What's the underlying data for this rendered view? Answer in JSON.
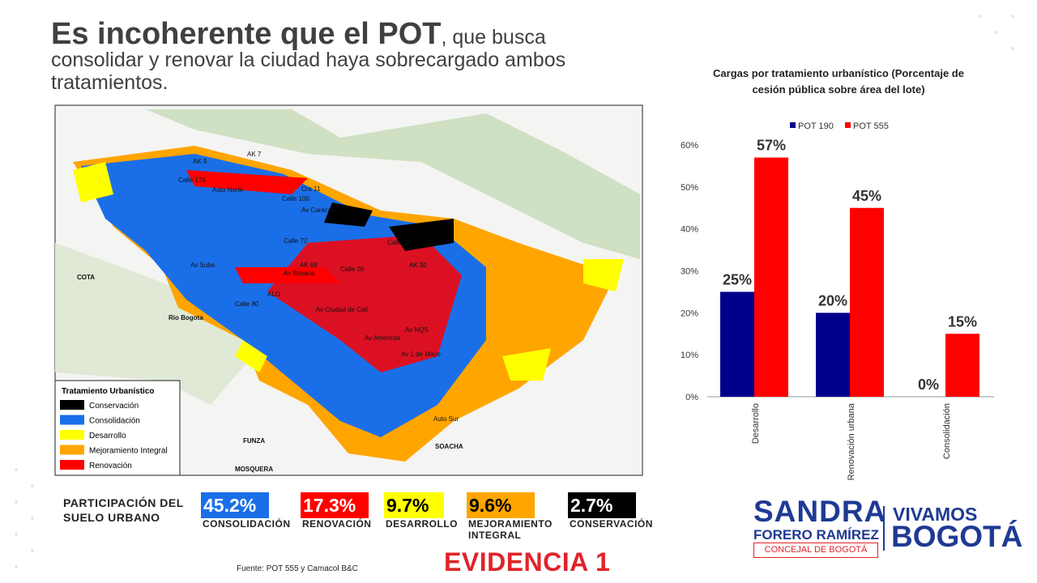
{
  "headline": {
    "bold": "Es incoherente que el POT",
    "rest": ", que busca consolidar y renovar la ciudad haya sobrecargado ambos tratamientos."
  },
  "map": {
    "legend_title": "Tratamiento Urbanístico",
    "legend": [
      {
        "label": "Conservación",
        "color": "#000000"
      },
      {
        "label": "Consolidación",
        "color": "#1a6fe8"
      },
      {
        "label": "Desarrollo",
        "color": "#ffff00"
      },
      {
        "label": "Mejoramiento Integral",
        "color": "#ffa500"
      },
      {
        "label": "Renovación",
        "color": "#ff0000"
      }
    ],
    "labels": [
      "AK 9",
      "AK 7",
      "Auto Norte",
      "Calle 100",
      "Cra 11",
      "Av Caracas",
      "Calle 170",
      "Av Suba",
      "Calle 72",
      "AK 68",
      "Calle 26",
      "AK 30",
      "Calle 13",
      "Calle 80",
      "ALO",
      "Av Boyaca",
      "Av Ciudad de Cali",
      "Av Americas",
      "Av NQS",
      "Av 1 de Mayo",
      "Auto Sur",
      "COTA",
      "Rio Bogota",
      "FUNZA",
      "MOSQUERA",
      "SOACHA"
    ]
  },
  "participation": {
    "title": "PARTICIPACIÓN DEL SUELO URBANO",
    "items": [
      {
        "value": "45.2%",
        "label": "CONSOLIDACIÓN",
        "color": "#1a6fe8",
        "text_color": "#ffffff"
      },
      {
        "value": "17.3%",
        "label": "RENOVACIÓN",
        "color": "#ff0000",
        "text_color": "#ffffff"
      },
      {
        "value": "9.7%",
        "label": "DESARROLLO",
        "color": "#ffff00",
        "text_color": "#000000"
      },
      {
        "value": "9.6%",
        "label": "MEJORAMIENTO INTEGRAL",
        "color": "#ffa500",
        "text_color": "#000000"
      },
      {
        "value": "2.7%",
        "label": "CONSERVACIÓN",
        "color": "#000000",
        "text_color": "#ffffff"
      }
    ]
  },
  "source": "Fuente: POT 555 y Camacol B&C",
  "evidence": "EVIDENCIA 1",
  "logo": {
    "name": "SANDRA",
    "surname": "FORERO RAMÍREZ",
    "role": "CONCEJAL DE BOGOTÁ",
    "party_1": "VIVAMOS",
    "party_2": "BOGOTÁ"
  },
  "chart_data": {
    "type": "bar",
    "title": "Cargas por tratamiento urbanístico (Porcentaje de cesión pública sobre área del lote)",
    "categories": [
      "Desarrollo",
      "Renovación urbana",
      "Consolidación"
    ],
    "series": [
      {
        "name": "POT 190",
        "color": "#00008b",
        "values": [
          25,
          20,
          0
        ],
        "value_labels": [
          "25%",
          "20%",
          "0%"
        ]
      },
      {
        "name": "POT 555",
        "color": "#ff0000",
        "values": [
          57,
          45,
          15
        ],
        "value_labels": [
          "57%",
          "45%",
          "15%"
        ]
      }
    ],
    "ylim": [
      0,
      60
    ],
    "yticks": [
      {
        "value": 0,
        "label": "0%"
      },
      {
        "value": 10,
        "label": "10%"
      },
      {
        "value": 20,
        "label": "20%"
      },
      {
        "value": 30,
        "label": "30%"
      },
      {
        "value": 40,
        "label": "40%"
      },
      {
        "value": 50,
        "label": "50%"
      },
      {
        "value": 60,
        "label": "60%"
      }
    ],
    "grid": false,
    "legend": "top"
  }
}
